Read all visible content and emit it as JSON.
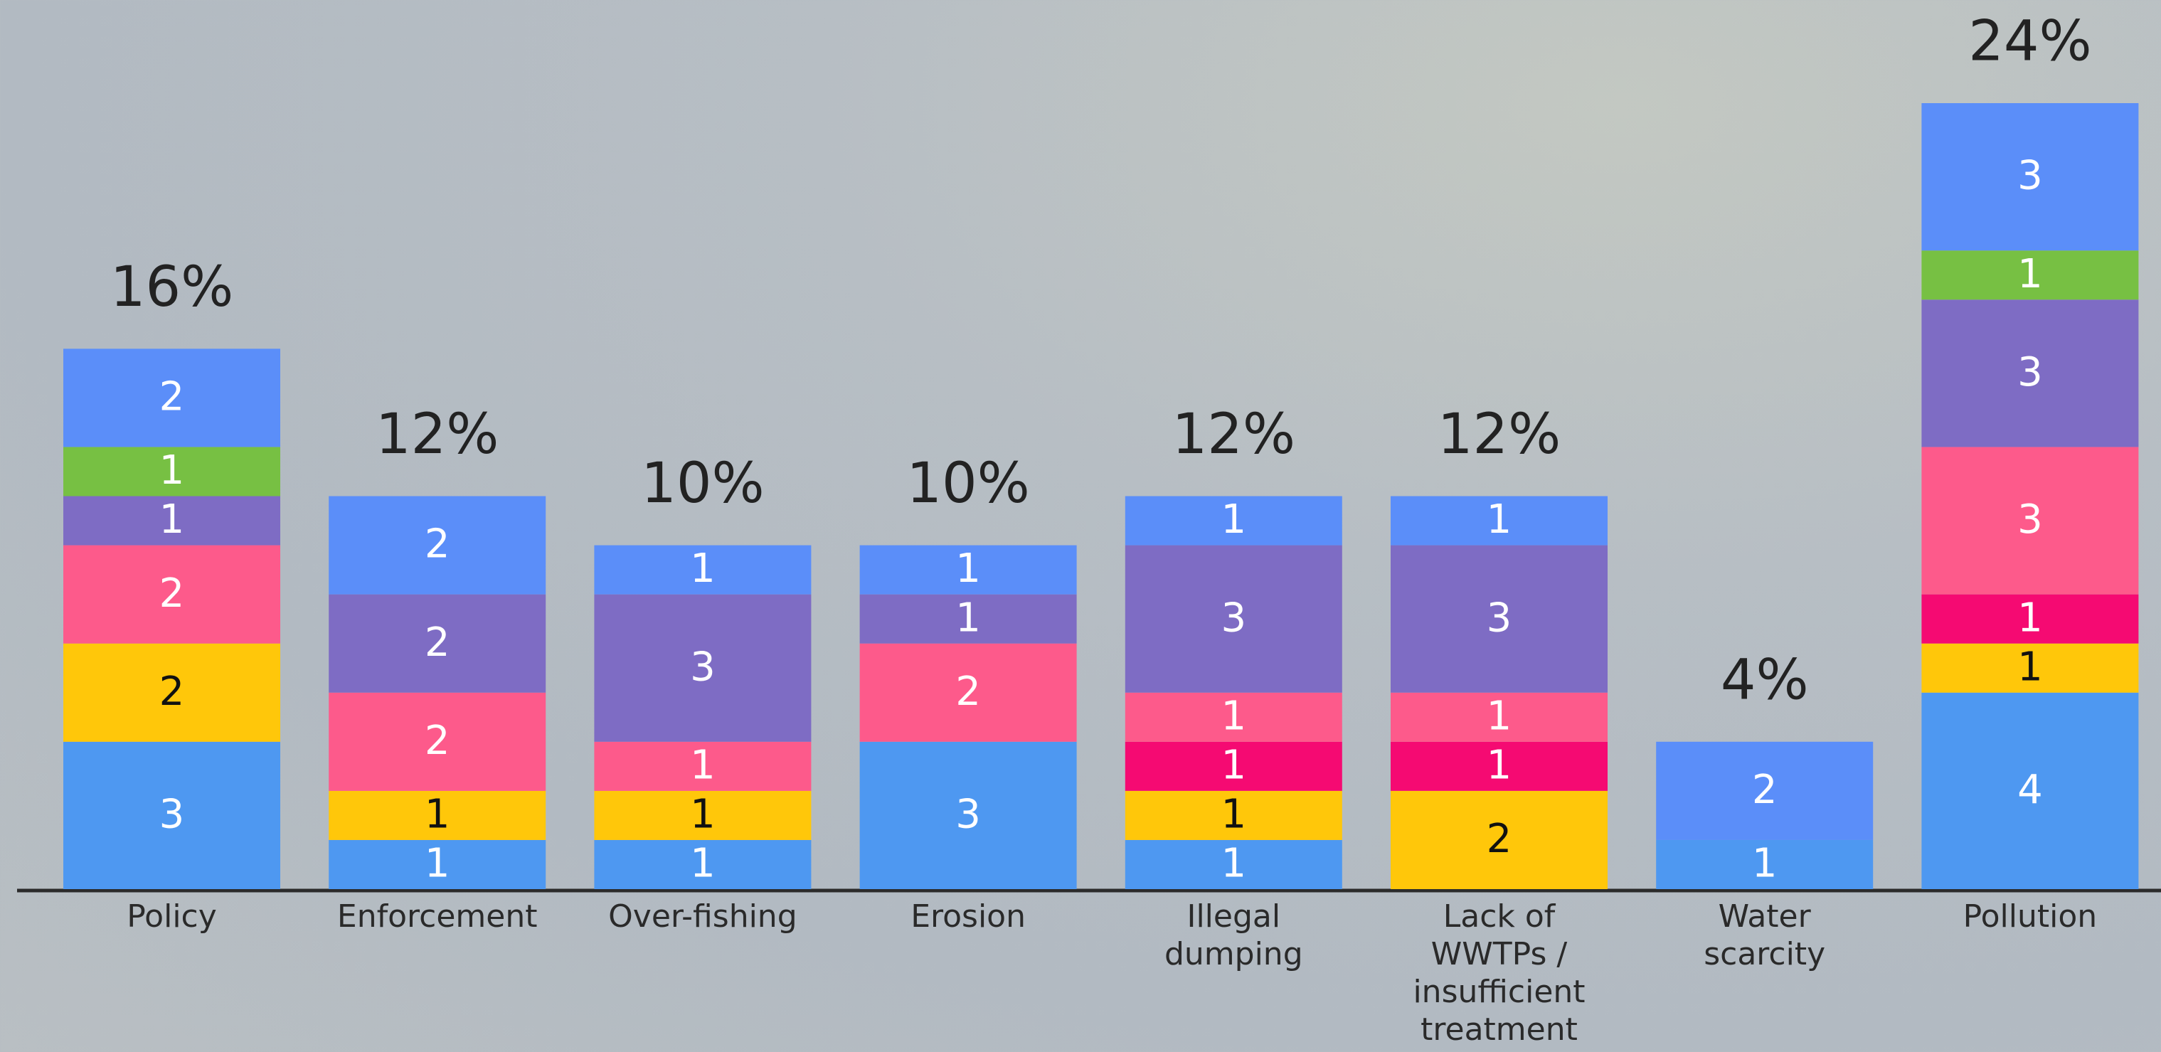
{
  "chart_data": {
    "type": "stacked-bar",
    "categories": [
      "Policy",
      "Enforcement",
      "Over-fishing",
      "Erosion",
      "Illegal\ndumping",
      "Lack of\nWWTPs /\ninsufficient\ntreatment",
      "Water\nscarcity",
      "Pollution"
    ],
    "series": [
      {
        "color": "#4e98f1",
        "label_color": "#ffffff",
        "values": [
          3,
          1,
          1,
          3,
          1,
          null,
          1,
          4
        ]
      },
      {
        "color": "#ffc70a",
        "label_color": "#111111",
        "values": [
          2,
          1,
          1,
          null,
          1,
          2,
          null,
          1
        ]
      },
      {
        "color": "#f50a72",
        "label_color": "#ffffff",
        "values": [
          null,
          null,
          null,
          null,
          1,
          1,
          null,
          1
        ]
      },
      {
        "color": "#fd5a8b",
        "label_color": "#ffffff",
        "values": [
          2,
          2,
          1,
          2,
          1,
          1,
          null,
          3
        ]
      },
      {
        "color": "#7e6cc4",
        "label_color": "#ffffff",
        "values": [
          1,
          2,
          3,
          1,
          3,
          3,
          null,
          3
        ]
      },
      {
        "color": "#77c043",
        "label_color": "#ffffff",
        "values": [
          1,
          null,
          null,
          null,
          null,
          null,
          null,
          1
        ]
      },
      {
        "color": "#5b8ef9",
        "label_color": "#ffffff",
        "values": [
          2,
          2,
          1,
          1,
          1,
          1,
          2,
          3
        ]
      }
    ],
    "totals": {
      "values": [
        16,
        12,
        10,
        10,
        12,
        12,
        4,
        24
      ],
      "value_labels": [
        "16%",
        "12%",
        "10%",
        "10%",
        "12%",
        "12%",
        "4%",
        "24%"
      ]
    },
    "ylim": [
      0,
      16
    ]
  }
}
